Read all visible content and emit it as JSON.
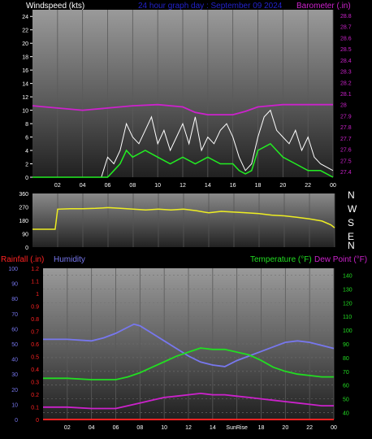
{
  "header": {
    "left": "Windspeed (kts)",
    "center": "24 hour graph day : September 09 2024",
    "right": "Barometer (.in)"
  },
  "colors": {
    "windspeed": "#ffffff",
    "wind_avg": "#22ee22",
    "barometer": "#cc22cc",
    "direction": "#eeee22",
    "rainfall": "#ff2222",
    "humidity": "#7777ee",
    "temperature": "#22dd22",
    "dewpoint": "#cc22cc",
    "title": "#2222cc"
  },
  "bottom_labels": {
    "rainfall": "Rainfall (.in)",
    "humidity": "Humidity",
    "temperature": "Temperature (°F)",
    "dewpoint": "Dew Point (°F)",
    "sunrise": "SunRise"
  },
  "chart_data": [
    {
      "type": "line",
      "title": "24 hour graph day : September 09 2024",
      "x_ticks": [
        "02",
        "04",
        "06",
        "08",
        "10",
        "12",
        "14",
        "16",
        "18",
        "20",
        "22",
        "00"
      ],
      "y_left": {
        "label": "Windspeed (kts)",
        "ticks": [
          0,
          2,
          4,
          6,
          8,
          10,
          12,
          14,
          16,
          18,
          20,
          22,
          24
        ],
        "range": [
          0,
          25
        ]
      },
      "y_right": {
        "label": "Barometer (.in)",
        "ticks": [
          27.4,
          27.5,
          27.6,
          27.7,
          27.8,
          27.9,
          28,
          28.1,
          28.2,
          28.3,
          28.4,
          28.5,
          28.6,
          28.7,
          28.8
        ],
        "range": [
          27.35,
          28.85
        ]
      },
      "series": [
        {
          "name": "Windspeed (kts)",
          "x": [
            0,
            2,
            4,
            5.5,
            6,
            6.5,
            7,
            7.5,
            8,
            8.5,
            9,
            9.5,
            10,
            10.5,
            11,
            11.5,
            12,
            12.5,
            13,
            13.5,
            14,
            14.5,
            15,
            15.5,
            16,
            16.5,
            17,
            17.5,
            18,
            18.5,
            19,
            19.5,
            20,
            20.5,
            21,
            21.5,
            22,
            22.5,
            23,
            24
          ],
          "y": [
            0,
            0,
            0,
            0,
            3,
            2,
            4,
            8,
            6,
            5,
            7,
            9,
            5,
            7,
            4,
            6,
            8,
            5,
            9,
            4,
            6,
            5,
            7,
            8,
            6,
            3,
            1,
            2,
            6,
            9,
            10,
            7,
            6,
            5,
            7,
            4,
            6,
            3,
            2,
            1
          ]
        },
        {
          "name": "Wind average",
          "x": [
            0,
            6,
            6.5,
            7,
            7.5,
            8,
            9,
            10,
            11,
            12,
            13,
            14,
            15,
            16,
            16.5,
            17,
            17.5,
            18,
            19,
            20,
            21,
            22,
            23,
            24
          ],
          "y": [
            0,
            0,
            1,
            2,
            4,
            3,
            4,
            3,
            2,
            3,
            2,
            3,
            2,
            2,
            1,
            0.5,
            1,
            4,
            5,
            3,
            2,
            1,
            1,
            0
          ]
        },
        {
          "name": "Barometer (.in)",
          "x": [
            0,
            2,
            4,
            6,
            8,
            10,
            12,
            13,
            14,
            16,
            17,
            18,
            20,
            22,
            24
          ],
          "y": [
            27.99,
            27.97,
            27.95,
            27.97,
            27.99,
            28.0,
            27.98,
            27.93,
            27.91,
            27.91,
            27.94,
            27.98,
            28.0,
            28.0,
            28.0
          ]
        }
      ]
    },
    {
      "type": "line",
      "y_left": {
        "ticks": [
          0,
          90,
          180,
          270,
          360
        ],
        "range": [
          0,
          360
        ]
      },
      "y_right": {
        "ticks": [
          "N",
          "W",
          "S",
          "E",
          "N"
        ]
      },
      "series": [
        {
          "name": "Wind direction",
          "x": [
            0,
            1,
            1.8,
            2,
            3,
            4,
            5,
            6,
            7,
            8,
            9,
            10,
            11,
            12,
            13,
            14,
            15,
            16,
            17,
            18,
            19,
            20,
            21,
            22,
            23,
            23.7,
            24
          ],
          "y": [
            120,
            120,
            120,
            255,
            258,
            258,
            260,
            265,
            260,
            255,
            250,
            255,
            250,
            255,
            245,
            230,
            240,
            235,
            230,
            225,
            215,
            210,
            200,
            190,
            175,
            150,
            130
          ]
        }
      ]
    },
    {
      "type": "line",
      "labels": [
        "Rainfall (.in)",
        "Humidity",
        "Temperature (°F)",
        "Dew Point (°F)"
      ],
      "y_rain": {
        "label": "Rainfall (.in)",
        "ticks": [
          0,
          0.1,
          0.2,
          0.3,
          0.4,
          0.5,
          0.6,
          0.7,
          0.8,
          0.9,
          1,
          1.1,
          1.2
        ],
        "range": [
          0,
          1.2
        ]
      },
      "y_humidity": {
        "label": "Humidity",
        "ticks": [
          0,
          10,
          20,
          30,
          40,
          50,
          60,
          70,
          80,
          90,
          100
        ],
        "range": [
          0,
          100
        ]
      },
      "y_temp": {
        "label": "Temperature (°F)",
        "ticks": [
          40,
          50,
          60,
          70,
          80,
          90,
          100,
          110,
          120,
          130,
          140
        ],
        "range": [
          35,
          145
        ]
      },
      "x_ticks": [
        "02",
        "04",
        "06",
        "08",
        "10",
        "12",
        "14",
        "SunRise",
        "18",
        "20",
        "22",
        "00"
      ],
      "series": [
        {
          "name": "Humidity",
          "x": [
            0,
            2,
            4,
            5,
            6,
            7,
            7.5,
            8,
            9,
            10,
            11,
            12,
            13,
            14,
            15,
            16,
            17,
            18,
            19,
            20,
            21,
            22,
            23,
            24
          ],
          "y": [
            53,
            53,
            52,
            54,
            57,
            61,
            63,
            62,
            57,
            52,
            47,
            42,
            38,
            36,
            35,
            39,
            42,
            45,
            48,
            51,
            52,
            51,
            49,
            47
          ]
        },
        {
          "name": "Temperature (°F)",
          "x": [
            0,
            2,
            4,
            5,
            6,
            7,
            8,
            9,
            10,
            11,
            12,
            13,
            14,
            15,
            16,
            17,
            18,
            19,
            20,
            21,
            22,
            23,
            24
          ],
          "y": [
            65,
            65,
            64,
            64,
            64,
            66,
            69,
            73,
            77,
            81,
            84,
            87,
            86,
            86,
            84,
            82,
            78,
            73,
            70,
            68,
            67,
            66,
            66
          ]
        },
        {
          "name": "Dew Point (°F)",
          "x": [
            0,
            2,
            4,
            5,
            6,
            7,
            8,
            9,
            10,
            11,
            12,
            13,
            14,
            15,
            16,
            17,
            18,
            19,
            20,
            21,
            22,
            23,
            24
          ],
          "y": [
            44,
            44,
            43,
            43,
            43,
            45,
            47,
            49,
            51,
            52,
            53,
            54,
            53,
            53,
            52,
            51,
            50,
            49,
            48,
            47,
            46,
            45,
            45
          ]
        },
        {
          "name": "Rainfall (.in)",
          "x": [
            0,
            24
          ],
          "y": [
            0,
            0
          ]
        }
      ]
    }
  ]
}
